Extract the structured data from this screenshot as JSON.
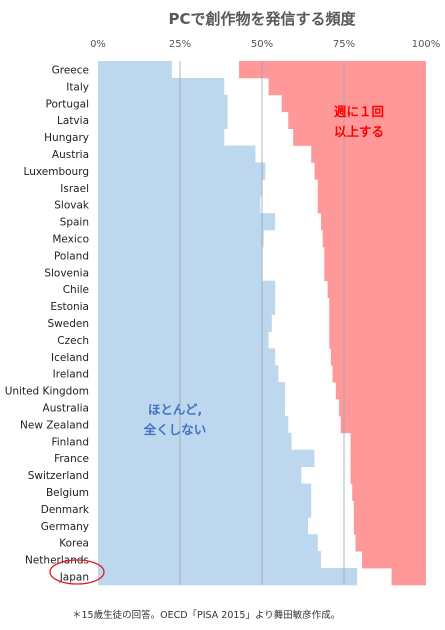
{
  "chart_data": {
    "type": "bar",
    "stacked": "diverging-100",
    "title": "PCで創作物を発信する頻度",
    "x_ticks": [
      "0%",
      "25%",
      "50%",
      "75%",
      "100%"
    ],
    "xlim": [
      0,
      100
    ],
    "grid": true,
    "categories": [
      "Greece",
      "Italy",
      "Portugal",
      "Latvia",
      "Hungary",
      "Austria",
      "Luxembourg",
      "Israel",
      "Slovak",
      "Spain",
      "Mexico",
      "Poland",
      "Slovenia",
      "Chile",
      "Estonia",
      "Sweden",
      "Czech",
      "Iceland",
      "Ireland",
      "United Kingdom",
      "Australia",
      "New Zealand",
      "Finland",
      "France",
      "Switzerland",
      "Belgium",
      "Denmark",
      "Germany",
      "Korea",
      "Netherlands",
      "Japan"
    ],
    "highlight_category": "Japan",
    "series": [
      {
        "label_lines": [
          "ほとんど,",
          "全くしない"
        ],
        "color": "#bdd7ee",
        "label_color": "#4472c4",
        "values": [
          22.5,
          38.5,
          39.5,
          39.5,
          38.5,
          48,
          51,
          50,
          49.5,
          54,
          50.5,
          50,
          50,
          54,
          54,
          53,
          52,
          54,
          55,
          57,
          57,
          58,
          59,
          66,
          62,
          65,
          65,
          64,
          67,
          68,
          79
        ]
      },
      {
        "label_lines": [
          "週に１回",
          "以上する"
        ],
        "color": "#ff9999",
        "label_color": "#ff0000",
        "values": [
          57,
          48,
          44,
          42,
          40.5,
          35,
          34,
          33,
          33,
          32,
          31.5,
          31,
          31,
          30,
          29.5,
          29.5,
          29.5,
          29,
          28.5,
          27.5,
          26.5,
          26,
          23,
          23,
          23,
          22.5,
          22,
          22,
          21.5,
          19.5,
          10.5
        ]
      }
    ]
  },
  "footnote": "＊15歳生徒の回答。OECD「PISA 2015」より舞田敏彦作成。"
}
